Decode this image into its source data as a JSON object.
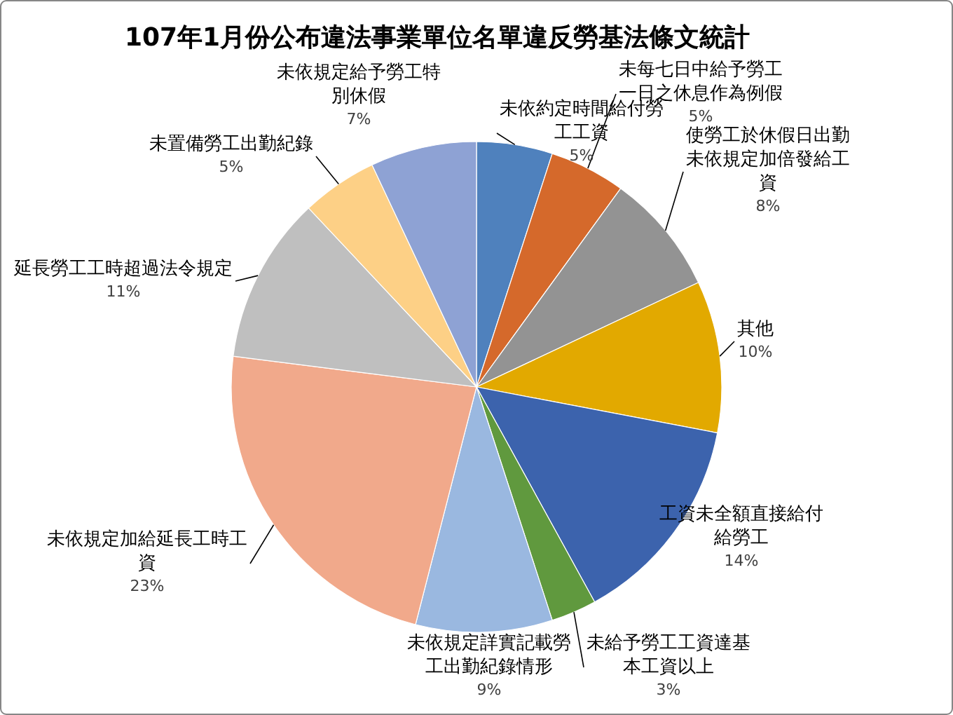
{
  "chart_data": {
    "type": "pie",
    "title": "107年1月份公布違法事業單位名單違反勞基法條文統計",
    "categories": [
      "未依約定時間給付勞工工資",
      "未每七日中給予勞工一日之休息作為例假",
      "使勞工於休假日出勤未依規定加倍發給工資",
      "其他",
      "工資未全額直接給付給勞工",
      "未給予勞工工資達基本工資以上",
      "未依規定詳實記載勞工出勤紀錄情形",
      "未依規定加給延長工時工資",
      "延長勞工工時超過法令規定",
      "未置備勞工出勤紀錄",
      "未依規定給予勞工特別休假"
    ],
    "values": [
      5,
      5,
      8,
      10,
      14,
      3,
      9,
      23,
      11,
      5,
      7
    ],
    "colors": [
      "#4f81bd",
      "#d5692b",
      "#939393",
      "#e2a900",
      "#3c63ad",
      "#60993e",
      "#9ab8e0",
      "#f1a98b",
      "#bfbfbf",
      "#fdd086",
      "#8ea2d4"
    ],
    "value_labels": [
      "5%",
      "5%",
      "8%",
      "10%",
      "14%",
      "3%",
      "9%",
      "23%",
      "11%",
      "5%",
      "7%"
    ]
  }
}
